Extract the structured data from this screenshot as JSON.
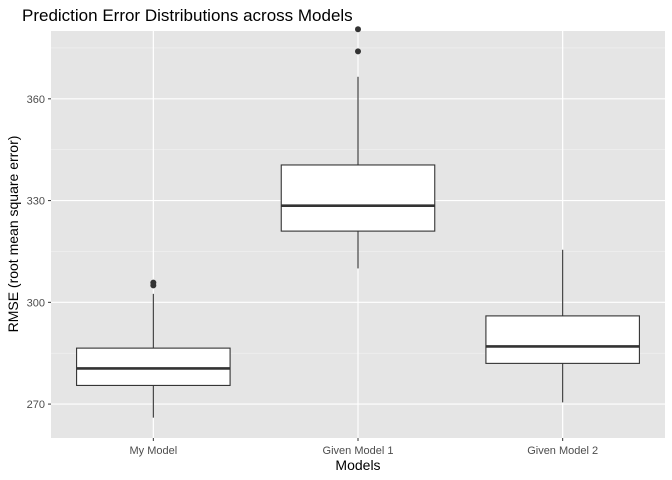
{
  "chart_data": {
    "type": "boxplot",
    "title": "Prediction Error Distributions across Models",
    "xlabel": "Models",
    "ylabel": "RMSE (root mean square error)",
    "categories": [
      "My Model",
      "Given Model 1",
      "Given Model 2"
    ],
    "ylim": [
      260,
      380
    ],
    "yticks": [
      270,
      300,
      330,
      360
    ],
    "grid": true,
    "background": "#e5e5e5",
    "boxes": [
      {
        "category": "My Model",
        "whisker_low": 266,
        "q1": 275.5,
        "median": 280.5,
        "q3": 286.5,
        "whisker_high": 302.5,
        "outliers": [
          305,
          305.8
        ]
      },
      {
        "category": "Given Model 1",
        "whisker_low": 310,
        "q1": 321,
        "median": 328.5,
        "q3": 340.5,
        "whisker_high": 366.5,
        "outliers": [
          374,
          380.5
        ]
      },
      {
        "category": "Given Model 2",
        "whisker_low": 270.5,
        "q1": 282,
        "median": 287,
        "q3": 296,
        "whisker_high": 315.5,
        "outliers": []
      }
    ]
  }
}
